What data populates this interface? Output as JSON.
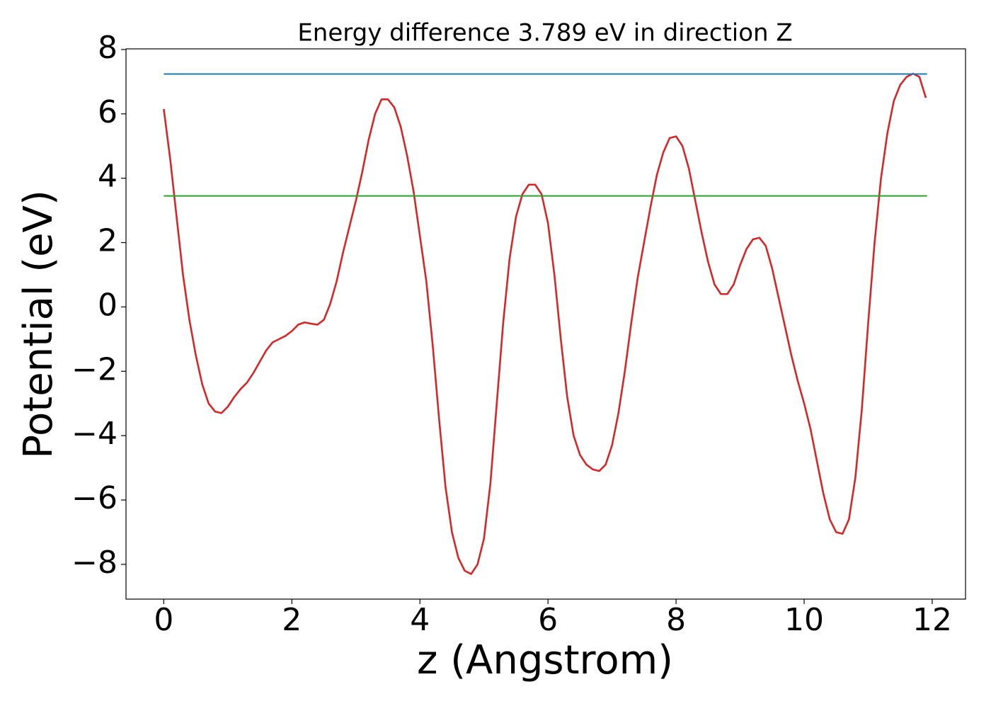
{
  "chart_data": {
    "type": "line",
    "title": "Energy difference 3.789 eV in direction Z",
    "xlabel": "z (Angstrom)",
    "ylabel": "Potential (eV)",
    "xlim": [
      -0.59,
      12.52
    ],
    "ylim": [
      -9.08,
      8.02
    ],
    "xticks": [
      0,
      2,
      4,
      6,
      8,
      10,
      12
    ],
    "yticks": [
      {
        "value": -8,
        "label": "−8"
      },
      {
        "value": -6,
        "label": "−6"
      },
      {
        "value": -4,
        "label": "−4"
      },
      {
        "value": -2,
        "label": "−2"
      },
      0,
      2,
      4,
      6,
      8
    ],
    "series": [
      {
        "color": "#d62728",
        "x": [
          0,
          0.1,
          0.2,
          0.3,
          0.4,
          0.5,
          0.6,
          0.7,
          0.8,
          0.9,
          1.0,
          1.1,
          1.2,
          1.3,
          1.4,
          1.5,
          1.6,
          1.7,
          1.8,
          1.9,
          2.0,
          2.1,
          2.2,
          2.3,
          2.4,
          2.5,
          2.6,
          2.7,
          2.8,
          2.9,
          3.0,
          3.1,
          3.2,
          3.3,
          3.4,
          3.5,
          3.6,
          3.7,
          3.8,
          3.9,
          4.0,
          4.1,
          4.2,
          4.3,
          4.4,
          4.5,
          4.6,
          4.7,
          4.8,
          4.9,
          5.0,
          5.1,
          5.2,
          5.3,
          5.4,
          5.5,
          5.6,
          5.7,
          5.8,
          5.9,
          6.0,
          6.1,
          6.2,
          6.3,
          6.4,
          6.5,
          6.6,
          6.7,
          6.8,
          6.9,
          7.0,
          7.1,
          7.2,
          7.3,
          7.4,
          7.5,
          7.6,
          7.7,
          7.8,
          7.9,
          8.0,
          8.1,
          8.2,
          8.3,
          8.4,
          8.5,
          8.6,
          8.7,
          8.8,
          8.9,
          9.0,
          9.1,
          9.2,
          9.3,
          9.4,
          9.5,
          9.6,
          9.7,
          9.8,
          9.9,
          10.0,
          10.1,
          10.2,
          10.3,
          10.4,
          10.5,
          10.6,
          10.7,
          10.8,
          10.9,
          11.0,
          11.1,
          11.2,
          11.3,
          11.4,
          11.5,
          11.6,
          11.7,
          11.8,
          11.9
        ],
        "values": [
          6.15,
          4.6,
          2.8,
          1.0,
          -0.4,
          -1.5,
          -2.4,
          -3.0,
          -3.25,
          -3.3,
          -3.1,
          -2.8,
          -2.55,
          -2.35,
          -2.05,
          -1.7,
          -1.35,
          -1.1,
          -1.0,
          -0.9,
          -0.75,
          -0.55,
          -0.48,
          -0.52,
          -0.55,
          -0.4,
          0.1,
          0.8,
          1.7,
          2.5,
          3.3,
          4.2,
          5.2,
          6.0,
          6.45,
          6.45,
          6.2,
          5.6,
          4.7,
          3.6,
          2.2,
          0.8,
          -1.2,
          -3.5,
          -5.6,
          -7.0,
          -7.8,
          -8.2,
          -8.3,
          -8.0,
          -7.2,
          -5.5,
          -3.0,
          -0.5,
          1.5,
          2.8,
          3.5,
          3.8,
          3.8,
          3.5,
          2.6,
          1.0,
          -1.0,
          -2.8,
          -4.0,
          -4.6,
          -4.9,
          -5.05,
          -5.1,
          -4.9,
          -4.3,
          -3.3,
          -2.0,
          -0.5,
          0.9,
          2.0,
          3.1,
          4.1,
          4.8,
          5.25,
          5.3,
          5.0,
          4.3,
          3.3,
          2.3,
          1.4,
          0.7,
          0.4,
          0.4,
          0.7,
          1.3,
          1.8,
          2.1,
          2.15,
          1.9,
          1.2,
          0.3,
          -0.6,
          -1.5,
          -2.3,
          -3.0,
          -3.8,
          -4.8,
          -5.8,
          -6.6,
          -7.0,
          -7.05,
          -6.6,
          -5.3,
          -3.2,
          -0.5,
          2.0,
          4.0,
          5.4,
          6.4,
          6.9,
          7.15,
          7.25,
          7.15,
          6.5
        ]
      },
      {
        "color": "#1f77b4",
        "x": [
          0,
          11.92
        ],
        "values": [
          7.24,
          7.24
        ]
      },
      {
        "color": "#2ca02c",
        "x": [
          0,
          11.92
        ],
        "values": [
          3.45,
          3.45
        ]
      }
    ]
  }
}
